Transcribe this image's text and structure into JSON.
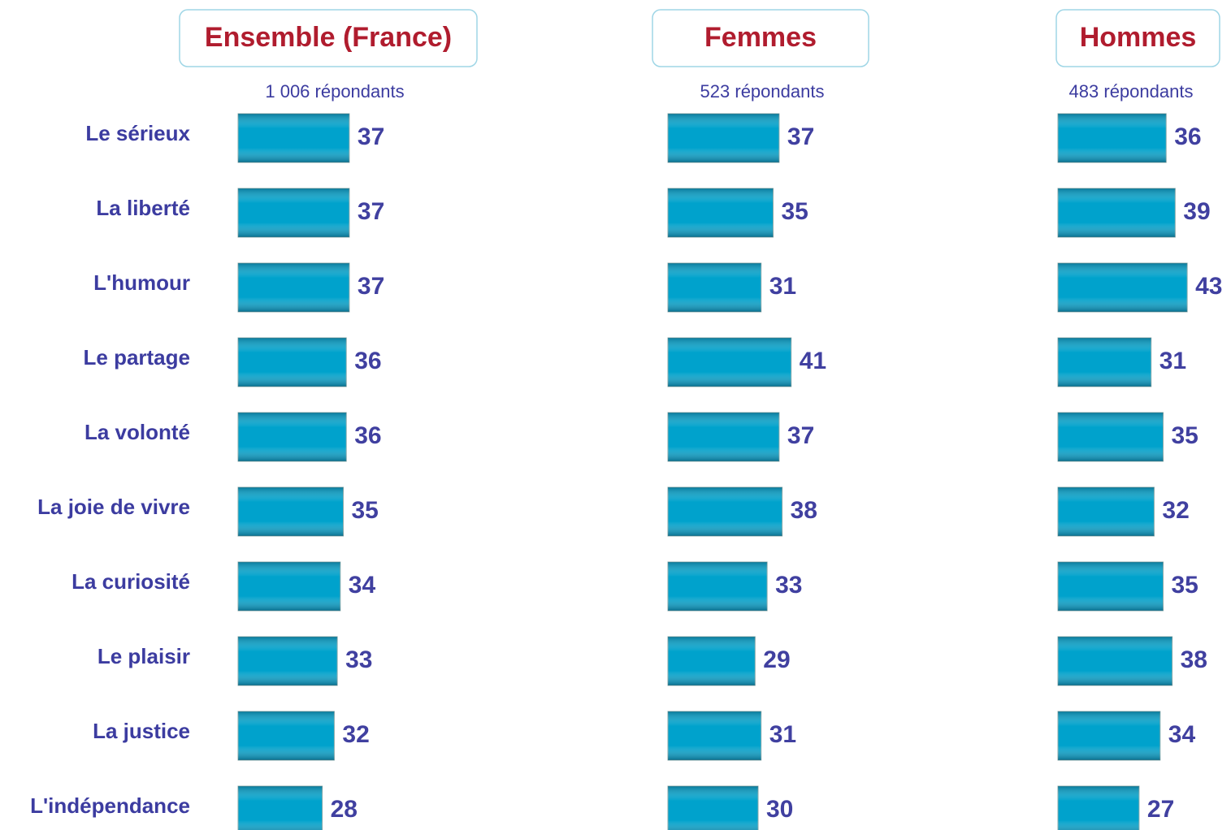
{
  "chart_data": [
    {
      "type": "bar",
      "title": "Ensemble (France)",
      "subtitle": "1 006 répondants",
      "categories": [
        "Le sérieux",
        "La liberté",
        "L'humour",
        "Le partage",
        "La volonté",
        "La joie de vivre",
        "La curiosité",
        "Le plaisir",
        "La justice",
        "L'indépendance"
      ],
      "values": [
        37,
        37,
        37,
        36,
        36,
        35,
        34,
        33,
        32,
        28
      ],
      "color": "#00a2cc"
    },
    {
      "type": "bar",
      "title": "Femmes",
      "subtitle": "523 répondants",
      "values": [
        37,
        35,
        31,
        41,
        37,
        38,
        33,
        29,
        31,
        30
      ],
      "color": "#00a2cc"
    },
    {
      "type": "bar",
      "title": "Hommes",
      "subtitle": "483 répondants",
      "values": [
        36,
        39,
        43,
        31,
        35,
        32,
        35,
        38,
        34,
        27
      ],
      "color": "#00a2cc"
    }
  ]
}
